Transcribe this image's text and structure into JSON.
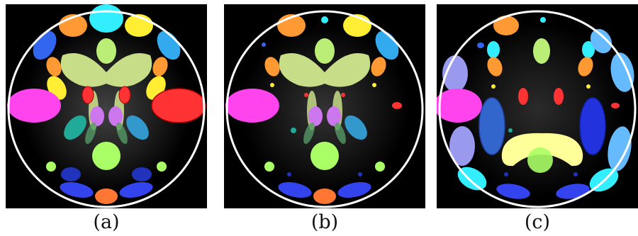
{
  "panels": [
    {
      "id": "a",
      "caption": "(a)"
    },
    {
      "id": "b",
      "caption": "(b)"
    },
    {
      "id": "c",
      "caption": "(c)"
    }
  ],
  "colors": {
    "background": "#000000",
    "circle": "#ffffff",
    "magenta": "#ff44ee",
    "red": "#ff3333",
    "orange": "#ff9933",
    "yellow": "#ffee33",
    "cyan": "#33eeff",
    "light_green": "#bbee77",
    "olive_green": "#c8dd88",
    "green": "#aaff66",
    "violet": "#cc77ee",
    "teal": "#22aa99",
    "steel_blue": "#3399cc",
    "blue": "#3344ee",
    "dark_blue": "#2233bb",
    "sky": "#66bbff",
    "lavender": "#9999ee",
    "pale_yellow": "#ffff99"
  }
}
